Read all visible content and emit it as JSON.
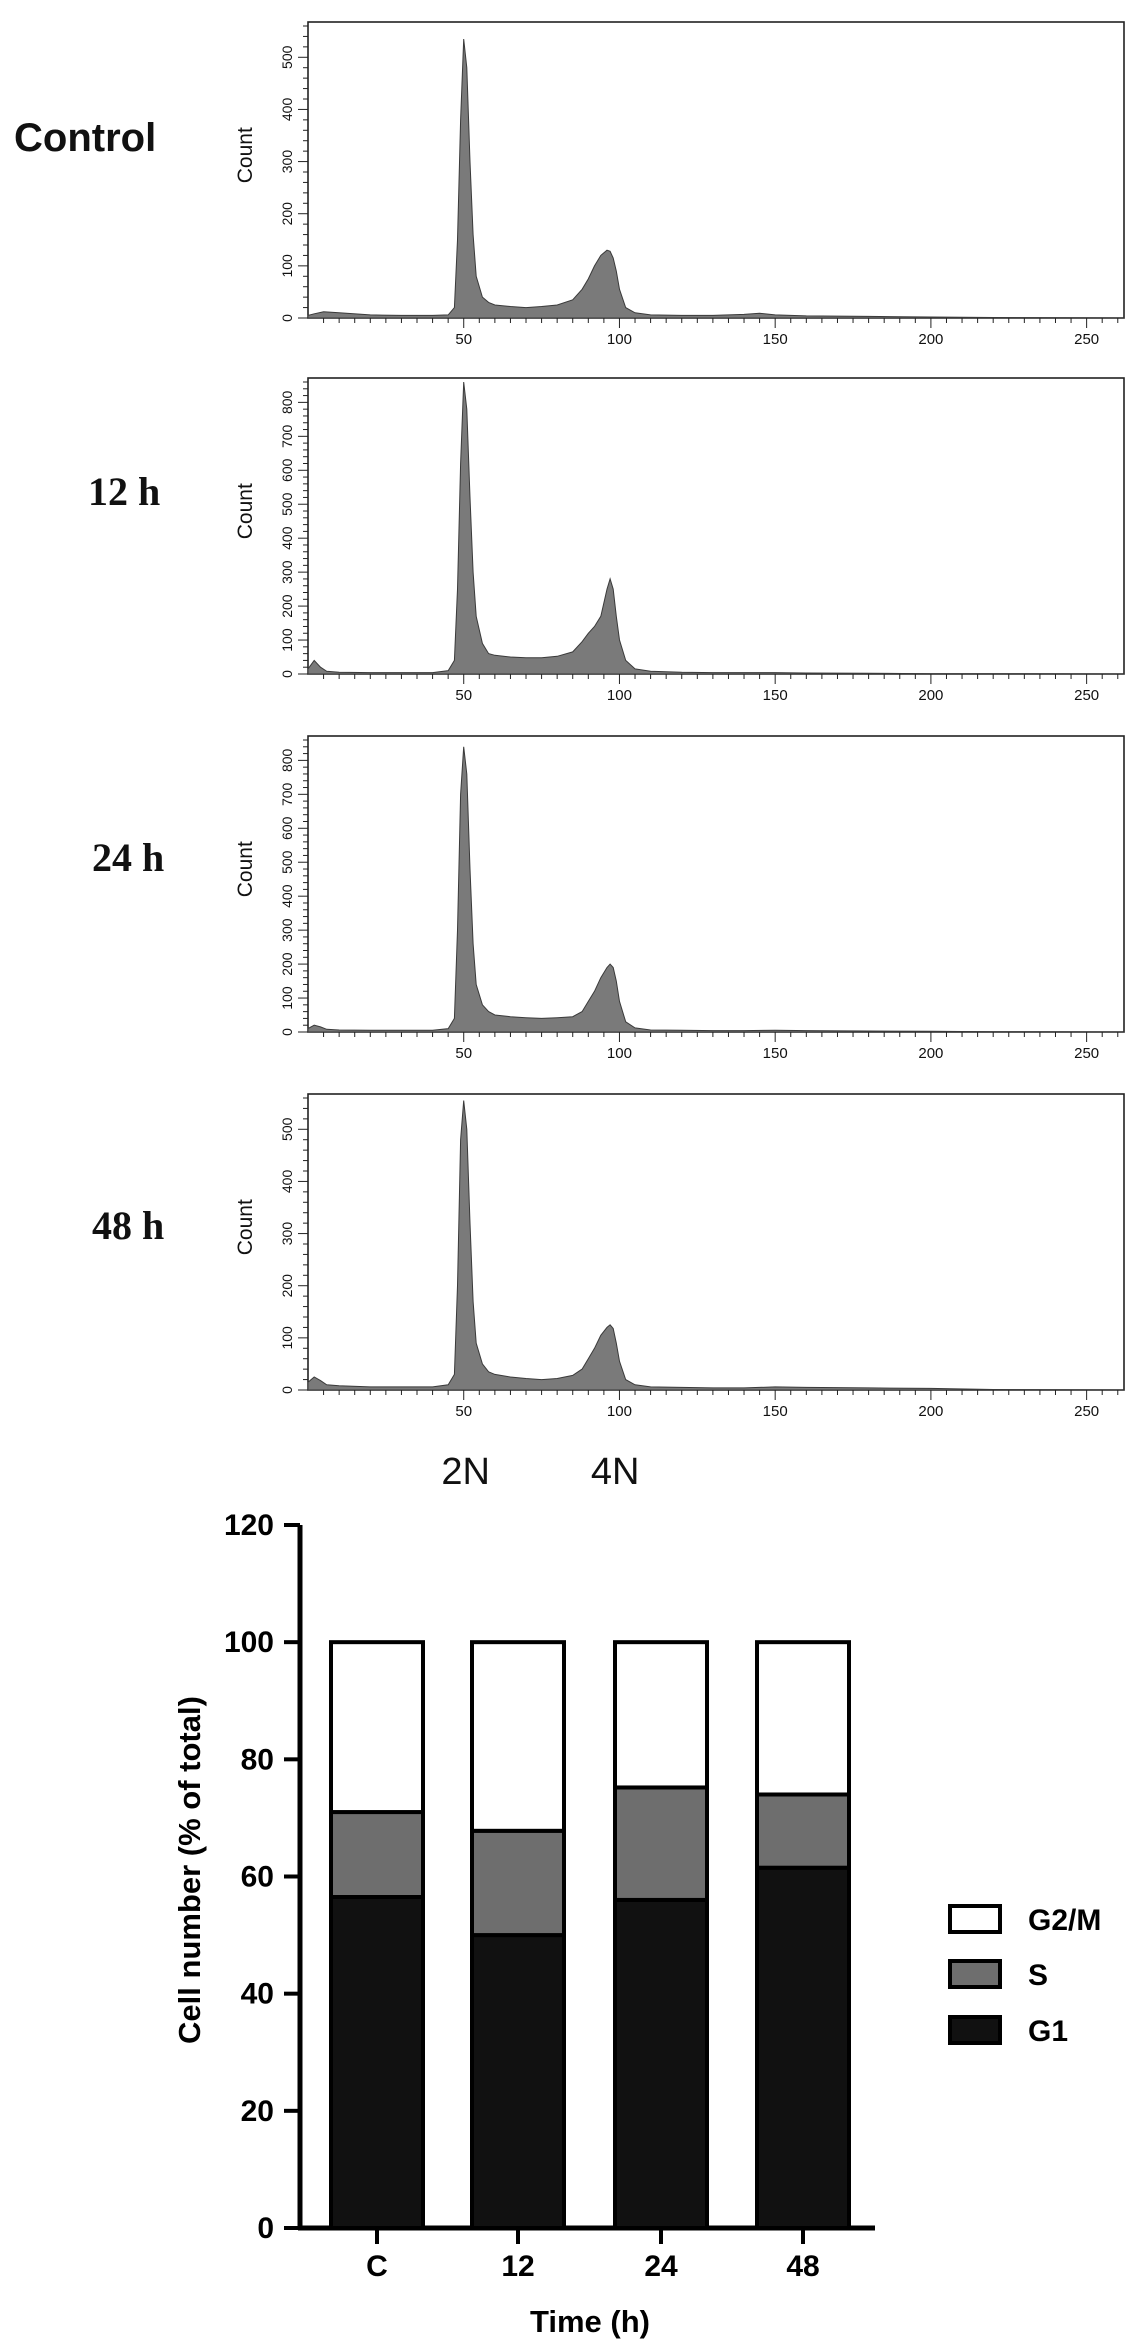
{
  "chart_data": [
    {
      "type": "area",
      "condition_label": "Control",
      "ylabel": "Count",
      "xlim": [
        0,
        262
      ],
      "ylim": [
        0,
        560
      ],
      "x_ticks": [
        50,
        100,
        150,
        200,
        250
      ],
      "y_ticks": [
        0,
        100,
        200,
        300,
        400,
        500
      ],
      "x": [
        0,
        2,
        5,
        10,
        20,
        30,
        40,
        45,
        47,
        48,
        49,
        50,
        51,
        52,
        53,
        54,
        56,
        58,
        60,
        65,
        70,
        75,
        80,
        85,
        88,
        90,
        92,
        94,
        96,
        97,
        98,
        99,
        100,
        102,
        105,
        110,
        120,
        130,
        140,
        145,
        150,
        160,
        180,
        200,
        220,
        262
      ],
      "count": [
        5,
        8,
        12,
        10,
        6,
        5,
        5,
        6,
        20,
        150,
        380,
        535,
        480,
        300,
        160,
        80,
        40,
        30,
        25,
        22,
        20,
        22,
        25,
        35,
        55,
        75,
        100,
        120,
        130,
        128,
        115,
        90,
        55,
        20,
        10,
        6,
        5,
        5,
        7,
        9,
        6,
        4,
        3,
        2,
        1,
        0
      ]
    },
    {
      "type": "area",
      "condition_label": "12 h",
      "ylabel": "Count",
      "xlim": [
        0,
        262
      ],
      "ylim": [
        0,
        860
      ],
      "x_ticks": [
        50,
        100,
        150,
        200,
        250
      ],
      "y_ticks": [
        0,
        100,
        200,
        300,
        400,
        500,
        600,
        700,
        800
      ],
      "x": [
        0,
        2,
        4,
        6,
        10,
        20,
        30,
        40,
        45,
        47,
        48,
        49,
        50,
        51,
        52,
        53,
        54,
        56,
        58,
        60,
        65,
        70,
        75,
        80,
        85,
        88,
        90,
        92,
        94,
        96,
        97,
        98,
        99,
        100,
        102,
        105,
        110,
        120,
        130,
        140,
        150,
        160,
        180,
        200,
        220,
        262
      ],
      "count": [
        15,
        40,
        20,
        8,
        5,
        4,
        4,
        4,
        10,
        40,
        250,
        620,
        860,
        780,
        520,
        300,
        170,
        90,
        60,
        55,
        50,
        48,
        48,
        52,
        65,
        95,
        120,
        140,
        170,
        250,
        280,
        250,
        170,
        100,
        40,
        15,
        8,
        5,
        4,
        4,
        4,
        3,
        2,
        1,
        1,
        0
      ]
    },
    {
      "type": "area",
      "condition_label": "24 h",
      "ylabel": "Count",
      "xlim": [
        0,
        262
      ],
      "ylim": [
        0,
        860
      ],
      "x_ticks": [
        50,
        100,
        150,
        200,
        250
      ],
      "y_ticks": [
        0,
        100,
        200,
        300,
        400,
        500,
        600,
        700,
        800
      ],
      "x": [
        0,
        2,
        4,
        6,
        10,
        20,
        30,
        40,
        45,
        47,
        48,
        49,
        50,
        51,
        52,
        53,
        54,
        56,
        58,
        60,
        65,
        70,
        75,
        80,
        85,
        88,
        90,
        92,
        94,
        96,
        97,
        98,
        99,
        100,
        102,
        105,
        110,
        120,
        130,
        140,
        150,
        160,
        180,
        200,
        220,
        262
      ],
      "count": [
        10,
        20,
        15,
        8,
        6,
        5,
        5,
        5,
        10,
        40,
        300,
        700,
        840,
        760,
        480,
        260,
        140,
        80,
        60,
        50,
        45,
        42,
        40,
        42,
        45,
        60,
        90,
        120,
        160,
        190,
        200,
        190,
        150,
        90,
        30,
        12,
        6,
        5,
        4,
        4,
        5,
        4,
        3,
        2,
        1,
        0
      ]
    },
    {
      "type": "area",
      "condition_label": "48 h",
      "ylabel": "Count",
      "xlim": [
        0,
        262
      ],
      "ylim": [
        0,
        560
      ],
      "x_ticks": [
        50,
        100,
        150,
        200,
        250
      ],
      "y_ticks": [
        0,
        100,
        200,
        300,
        400,
        500
      ],
      "x": [
        0,
        2,
        4,
        6,
        10,
        20,
        30,
        40,
        45,
        47,
        48,
        49,
        50,
        51,
        52,
        53,
        54,
        56,
        58,
        60,
        65,
        70,
        75,
        80,
        85,
        88,
        90,
        92,
        94,
        96,
        97,
        98,
        99,
        100,
        102,
        105,
        110,
        120,
        130,
        140,
        150,
        160,
        180,
        200,
        220,
        262
      ],
      "count": [
        15,
        25,
        18,
        10,
        8,
        6,
        6,
        6,
        10,
        30,
        200,
        480,
        555,
        500,
        320,
        170,
        90,
        50,
        35,
        30,
        25,
        22,
        20,
        22,
        28,
        40,
        60,
        80,
        105,
        120,
        125,
        118,
        90,
        55,
        20,
        10,
        6,
        5,
        4,
        4,
        6,
        5,
        4,
        3,
        1,
        0
      ]
    },
    {
      "type": "bar",
      "stacked": true,
      "categories": [
        "C",
        "12",
        "24",
        "48"
      ],
      "series": [
        {
          "name": "G1",
          "values": [
            56.5,
            50.0,
            56.0,
            61.5
          ],
          "color": "#111111"
        },
        {
          "name": "S",
          "values": [
            14.5,
            17.8,
            19.2,
            12.5
          ],
          "color": "#6e6e6e"
        },
        {
          "name": "G2/M",
          "values": [
            29.0,
            32.2,
            24.8,
            26.0
          ],
          "color": "#ffffff"
        }
      ],
      "xlabel": "Time (h)",
      "ylabel": "Cell number (% of total)",
      "ylim": [
        0,
        120
      ],
      "y_ticks": [
        0,
        20,
        40,
        60,
        80,
        100,
        120
      ],
      "legend_order": [
        "G2/M",
        "S",
        "G1"
      ],
      "legend_position": "right",
      "grid": false
    }
  ],
  "peak_labels": [
    "2N",
    "4N"
  ],
  "colors": {
    "histogram_fill": "#7a7a7a",
    "histogram_stroke": "#3a3a3a"
  }
}
